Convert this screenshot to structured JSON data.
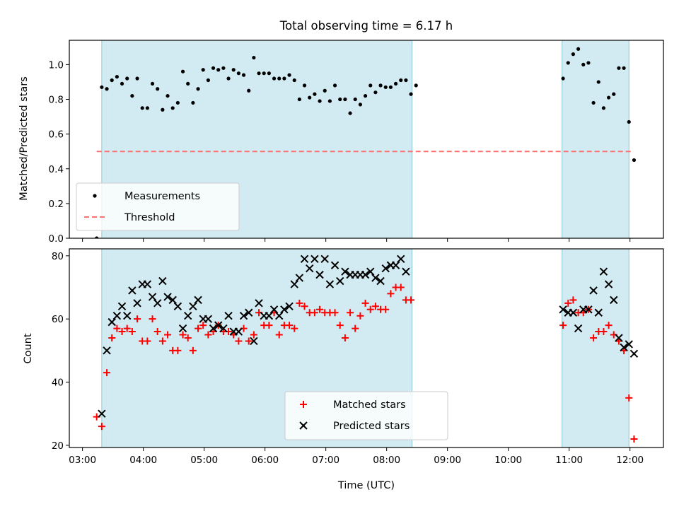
{
  "chart_data": {
    "title": "Total observing time = 6.17 h",
    "xlabel": "Time (UTC)",
    "xlim": [
      "02:47",
      "12:33"
    ],
    "x_ticks": [
      "03:00",
      "04:00",
      "05:00",
      "06:00",
      "07:00",
      "08:00",
      "09:00",
      "10:00",
      "11:00",
      "12:00"
    ],
    "shaded_intervals": [
      [
        "03:19",
        "08:25"
      ],
      [
        "10:53",
        "11:59"
      ]
    ],
    "shade_color": "#add8e6",
    "panels": [
      {
        "type": "scatter",
        "ylabel": "Matched/Predicted stars",
        "ylim": [
          0,
          1.14
        ],
        "y_ticks": [
          "0.0",
          "0.2",
          "0.4",
          "0.6",
          "0.8",
          "1.0"
        ],
        "legend_position": "lower-left",
        "threshold": {
          "name": "Threshold",
          "value": 0.5,
          "x_range": [
            "03:14",
            "12:02"
          ],
          "color": "#ff7070",
          "style": "dashed"
        },
        "series": [
          {
            "name": "Measurements",
            "marker": "dot",
            "color": "#000000",
            "points": [
              [
                "03:14",
                0.0
              ],
              [
                "03:19",
                0.87
              ],
              [
                "03:24",
                0.86
              ],
              [
                "03:29",
                0.91
              ],
              [
                "03:34",
                0.93
              ],
              [
                "03:39",
                0.89
              ],
              [
                "03:44",
                0.92
              ],
              [
                "03:49",
                0.82
              ],
              [
                "03:54",
                0.92
              ],
              [
                "03:59",
                0.75
              ],
              [
                "04:04",
                0.75
              ],
              [
                "04:09",
                0.89
              ],
              [
                "04:14",
                0.86
              ],
              [
                "04:19",
                0.74
              ],
              [
                "04:24",
                0.82
              ],
              [
                "04:29",
                0.75
              ],
              [
                "04:34",
                0.78
              ],
              [
                "04:39",
                0.96
              ],
              [
                "04:44",
                0.89
              ],
              [
                "04:49",
                0.78
              ],
              [
                "04:54",
                0.86
              ],
              [
                "04:59",
                0.97
              ],
              [
                "05:04",
                0.91
              ],
              [
                "05:09",
                0.98
              ],
              [
                "05:14",
                0.97
              ],
              [
                "05:19",
                0.98
              ],
              [
                "05:24",
                0.92
              ],
              [
                "05:29",
                0.97
              ],
              [
                "05:34",
                0.95
              ],
              [
                "05:39",
                0.94
              ],
              [
                "05:44",
                0.85
              ],
              [
                "05:49",
                1.04
              ],
              [
                "05:54",
                0.95
              ],
              [
                "05:59",
                0.95
              ],
              [
                "06:04",
                0.95
              ],
              [
                "06:09",
                0.92
              ],
              [
                "06:14",
                0.92
              ],
              [
                "06:19",
                0.92
              ],
              [
                "06:24",
                0.94
              ],
              [
                "06:29",
                0.91
              ],
              [
                "06:34",
                0.8
              ],
              [
                "06:39",
                0.88
              ],
              [
                "06:44",
                0.81
              ],
              [
                "06:49",
                0.83
              ],
              [
                "06:54",
                0.79
              ],
              [
                "06:59",
                0.85
              ],
              [
                "07:04",
                0.79
              ],
              [
                "07:09",
                0.88
              ],
              [
                "07:14",
                0.8
              ],
              [
                "07:19",
                0.8
              ],
              [
                "07:24",
                0.72
              ],
              [
                "07:29",
                0.8
              ],
              [
                "07:34",
                0.77
              ],
              [
                "07:39",
                0.82
              ],
              [
                "07:44",
                0.88
              ],
              [
                "07:49",
                0.84
              ],
              [
                "07:54",
                0.88
              ],
              [
                "07:59",
                0.87
              ],
              [
                "08:04",
                0.87
              ],
              [
                "08:09",
                0.89
              ],
              [
                "08:14",
                0.91
              ],
              [
                "08:19",
                0.91
              ],
              [
                "08:24",
                0.83
              ],
              [
                "08:29",
                0.88
              ],
              [
                "10:54",
                0.92
              ],
              [
                "10:59",
                1.01
              ],
              [
                "11:04",
                1.06
              ],
              [
                "11:09",
                1.09
              ],
              [
                "11:14",
                1.0
              ],
              [
                "11:19",
                1.01
              ],
              [
                "11:24",
                0.78
              ],
              [
                "11:29",
                0.9
              ],
              [
                "11:34",
                0.75
              ],
              [
                "11:39",
                0.81
              ],
              [
                "11:44",
                0.83
              ],
              [
                "11:49",
                0.98
              ],
              [
                "11:54",
                0.98
              ],
              [
                "11:59",
                0.67
              ],
              [
                "12:04",
                0.45
              ]
            ]
          }
        ]
      },
      {
        "type": "scatter",
        "ylabel": "Count",
        "ylim": [
          19.3,
          82.2
        ],
        "y_ticks": [
          "20",
          "40",
          "60",
          "80"
        ],
        "legend_position": "lower-center",
        "series": [
          {
            "name": "Matched stars",
            "marker": "plus",
            "color": "#ff0000",
            "points": [
              [
                "03:14",
                29
              ],
              [
                "03:19",
                26
              ],
              [
                "03:24",
                43
              ],
              [
                "03:29",
                54
              ],
              [
                "03:34",
                57
              ],
              [
                "03:39",
                56
              ],
              [
                "03:44",
                57
              ],
              [
                "03:49",
                56
              ],
              [
                "03:54",
                60
              ],
              [
                "03:59",
                53
              ],
              [
                "04:04",
                53
              ],
              [
                "04:09",
                60
              ],
              [
                "04:14",
                56
              ],
              [
                "04:19",
                53
              ],
              [
                "04:24",
                55
              ],
              [
                "04:29",
                50
              ],
              [
                "04:34",
                50
              ],
              [
                "04:39",
                55
              ],
              [
                "04:44",
                54
              ],
              [
                "04:49",
                50
              ],
              [
                "04:54",
                57
              ],
              [
                "04:59",
                58
              ],
              [
                "05:04",
                55
              ],
              [
                "05:09",
                56
              ],
              [
                "05:14",
                58
              ],
              [
                "05:19",
                56
              ],
              [
                "05:24",
                56
              ],
              [
                "05:29",
                55
              ],
              [
                "05:34",
                53
              ],
              [
                "05:39",
                57
              ],
              [
                "05:44",
                53
              ],
              [
                "05:49",
                55
              ],
              [
                "05:54",
                62
              ],
              [
                "05:59",
                58
              ],
              [
                "06:04",
                58
              ],
              [
                "06:09",
                62
              ],
              [
                "06:14",
                55
              ],
              [
                "06:19",
                58
              ],
              [
                "06:24",
                58
              ],
              [
                "06:29",
                57
              ],
              [
                "06:34",
                65
              ],
              [
                "06:39",
                64
              ],
              [
                "06:44",
                62
              ],
              [
                "06:49",
                62
              ],
              [
                "06:54",
                63
              ],
              [
                "06:59",
                62
              ],
              [
                "07:04",
                62
              ],
              [
                "07:09",
                62
              ],
              [
                "07:14",
                58
              ],
              [
                "07:19",
                54
              ],
              [
                "07:24",
                62
              ],
              [
                "07:29",
                57
              ],
              [
                "07:34",
                61
              ],
              [
                "07:39",
                65
              ],
              [
                "07:44",
                63
              ],
              [
                "07:49",
                64
              ],
              [
                "07:54",
                63
              ],
              [
                "07:59",
                63
              ],
              [
                "08:04",
                68
              ],
              [
                "08:09",
                70
              ],
              [
                "08:14",
                70
              ],
              [
                "08:19",
                66
              ],
              [
                "08:24",
                66
              ],
              [
                "10:54",
                58
              ],
              [
                "10:59",
                65
              ],
              [
                "11:04",
                66
              ],
              [
                "11:09",
                62
              ],
              [
                "11:14",
                62
              ],
              [
                "11:19",
                63
              ],
              [
                "11:24",
                54
              ],
              [
                "11:29",
                56
              ],
              [
                "11:34",
                56
              ],
              [
                "11:39",
                58
              ],
              [
                "11:44",
                55
              ],
              [
                "11:49",
                53
              ],
              [
                "11:54",
                50
              ],
              [
                "11:59",
                35
              ],
              [
                "12:04",
                22
              ]
            ]
          },
          {
            "name": "Predicted stars",
            "marker": "x",
            "color": "#000000",
            "points": [
              [
                "03:19",
                30
              ],
              [
                "03:24",
                50
              ],
              [
                "03:29",
                59
              ],
              [
                "03:34",
                61
              ],
              [
                "03:39",
                64
              ],
              [
                "03:44",
                61
              ],
              [
                "03:49",
                69
              ],
              [
                "03:54",
                65
              ],
              [
                "03:59",
                71
              ],
              [
                "04:04",
                71
              ],
              [
                "04:09",
                67
              ],
              [
                "04:14",
                65
              ],
              [
                "04:19",
                72
              ],
              [
                "04:24",
                67
              ],
              [
                "04:29",
                66
              ],
              [
                "04:34",
                64
              ],
              [
                "04:39",
                57
              ],
              [
                "04:44",
                61
              ],
              [
                "04:49",
                64
              ],
              [
                "04:54",
                66
              ],
              [
                "04:59",
                60
              ],
              [
                "05:04",
                60
              ],
              [
                "05:09",
                57
              ],
              [
                "05:14",
                58
              ],
              [
                "05:19",
                57
              ],
              [
                "05:24",
                61
              ],
              [
                "05:29",
                56
              ],
              [
                "05:34",
                56
              ],
              [
                "05:39",
                61
              ],
              [
                "05:44",
                62
              ],
              [
                "05:49",
                53
              ],
              [
                "05:54",
                65
              ],
              [
                "05:59",
                61
              ],
              [
                "06:04",
                61
              ],
              [
                "06:09",
                63
              ],
              [
                "06:14",
                61
              ],
              [
                "06:19",
                63
              ],
              [
                "06:24",
                64
              ],
              [
                "06:29",
                71
              ],
              [
                "06:34",
                73
              ],
              [
                "06:39",
                79
              ],
              [
                "06:44",
                76
              ],
              [
                "06:49",
                79
              ],
              [
                "06:54",
                74
              ],
              [
                "06:59",
                79
              ],
              [
                "07:04",
                71
              ],
              [
                "07:09",
                77
              ],
              [
                "07:14",
                72
              ],
              [
                "07:19",
                75
              ],
              [
                "07:24",
                74
              ],
              [
                "07:29",
                74
              ],
              [
                "07:34",
                74
              ],
              [
                "07:39",
                74
              ],
              [
                "07:44",
                75
              ],
              [
                "07:49",
                73
              ],
              [
                "07:54",
                72
              ],
              [
                "07:59",
                76
              ],
              [
                "08:04",
                77
              ],
              [
                "08:09",
                77
              ],
              [
                "08:14",
                79
              ],
              [
                "08:19",
                75
              ],
              [
                "10:54",
                63
              ],
              [
                "10:59",
                62
              ],
              [
                "11:04",
                62
              ],
              [
                "11:09",
                57
              ],
              [
                "11:14",
                63
              ],
              [
                "11:19",
                63
              ],
              [
                "11:24",
                69
              ],
              [
                "11:29",
                62
              ],
              [
                "11:34",
                75
              ],
              [
                "11:39",
                71
              ],
              [
                "11:44",
                66
              ],
              [
                "11:49",
                54
              ],
              [
                "11:54",
                51
              ],
              [
                "11:59",
                52
              ],
              [
                "12:04",
                49
              ]
            ]
          }
        ]
      }
    ]
  }
}
